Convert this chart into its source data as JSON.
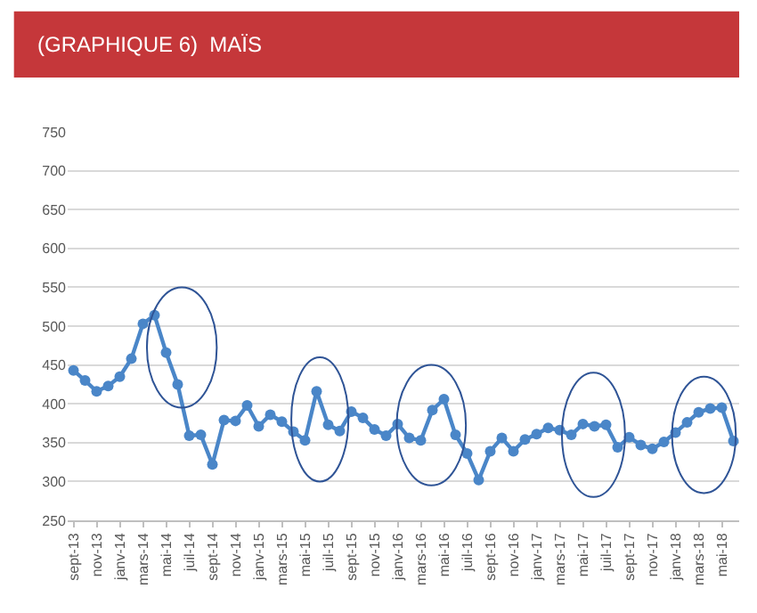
{
  "chart_data": {
    "type": "line",
    "title": "(GRAPHIQUE 6)  MAÏS",
    "categories": [
      "sept-13",
      null,
      "nov-13",
      null,
      "janv-14",
      null,
      "mars-14",
      null,
      "mai-14",
      null,
      "juil-14",
      null,
      "sept-14",
      null,
      "nov-14",
      null,
      "janv-15",
      null,
      "mars-15",
      null,
      "mai-15",
      null,
      "juil-15",
      null,
      "sept-15",
      null,
      "nov-15",
      null,
      "janv-16",
      null,
      "mars-16",
      null,
      "mai-16",
      null,
      "juil-16",
      null,
      "sept-16",
      null,
      "nov-16",
      null,
      "janv-17",
      null,
      "mars-17",
      null,
      "mai-17",
      null,
      "juil-17",
      null,
      "sept-17",
      null,
      "nov-17",
      null,
      "janv-18",
      null,
      "mars-18",
      null,
      "mai-18",
      null
    ],
    "series": [
      {
        "color": "#4a86c8",
        "values": [
          443,
          430,
          416,
          423,
          435,
          458,
          503,
          514,
          466,
          425,
          359,
          360,
          322,
          379,
          378,
          398,
          371,
          386,
          377,
          364,
          353,
          416,
          373,
          365,
          390,
          382,
          367,
          359,
          374,
          356,
          353,
          392,
          406,
          360,
          336,
          302,
          339,
          356,
          339,
          354,
          361,
          369,
          366,
          360,
          374,
          371,
          373,
          344,
          357,
          347,
          342,
          351,
          363,
          376,
          389,
          394,
          395,
          352
        ]
      }
    ],
    "ylim": [
      250,
      750
    ],
    "yticks": [
      250,
      300,
      350,
      400,
      450,
      500,
      550,
      600,
      650,
      700,
      750
    ],
    "grid": "y",
    "legend": false,
    "marker": "circle",
    "line_style": "solid"
  }
}
